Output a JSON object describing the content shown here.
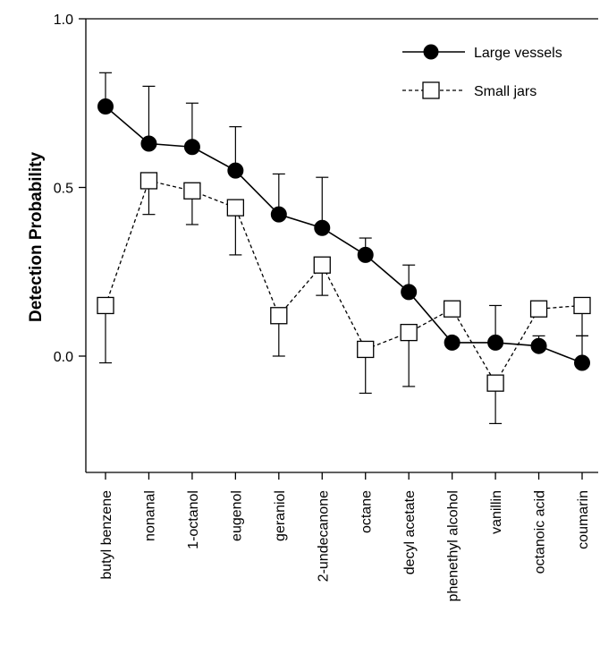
{
  "chart_data": {
    "type": "line",
    "xlabel": "",
    "ylabel": "Detection Probability",
    "ylim": [
      -0.35,
      1.0
    ],
    "yticks": [
      0.0,
      0.5,
      1.0
    ],
    "ytick_labels": [
      "0.0",
      "0.5",
      "1.0"
    ],
    "grid": false,
    "legend": "top-right",
    "categories": [
      "butyl benzene",
      "nonanal",
      "1-octanol",
      "eugenol",
      "geraniol",
      "2-undecanone",
      "octane",
      "decyl acetate",
      "phenethyl alcohol",
      "vanillin",
      "octanoic acid",
      "coumarin"
    ],
    "series": [
      {
        "name": "Large vessels",
        "marker": "filled-circle",
        "line": "solid",
        "color": "#000000",
        "values": [
          0.74,
          0.63,
          0.62,
          0.55,
          0.42,
          0.38,
          0.3,
          0.19,
          0.04,
          0.04,
          0.03,
          -0.02
        ],
        "error_upper": [
          0.84,
          0.8,
          0.75,
          0.68,
          0.54,
          0.53,
          0.35,
          0.27,
          null,
          0.15,
          0.06,
          0.06
        ]
      },
      {
        "name": "Small jars",
        "marker": "open-square",
        "line": "dashed",
        "color": "#000000",
        "values": [
          0.15,
          0.52,
          0.49,
          0.44,
          0.12,
          0.27,
          0.02,
          0.07,
          0.14,
          -0.08,
          0.14,
          0.15
        ],
        "error_lower": [
          -0.02,
          0.42,
          0.39,
          0.3,
          0.0,
          0.18,
          -0.11,
          -0.09,
          null,
          -0.2,
          null,
          0.06
        ]
      }
    ]
  }
}
